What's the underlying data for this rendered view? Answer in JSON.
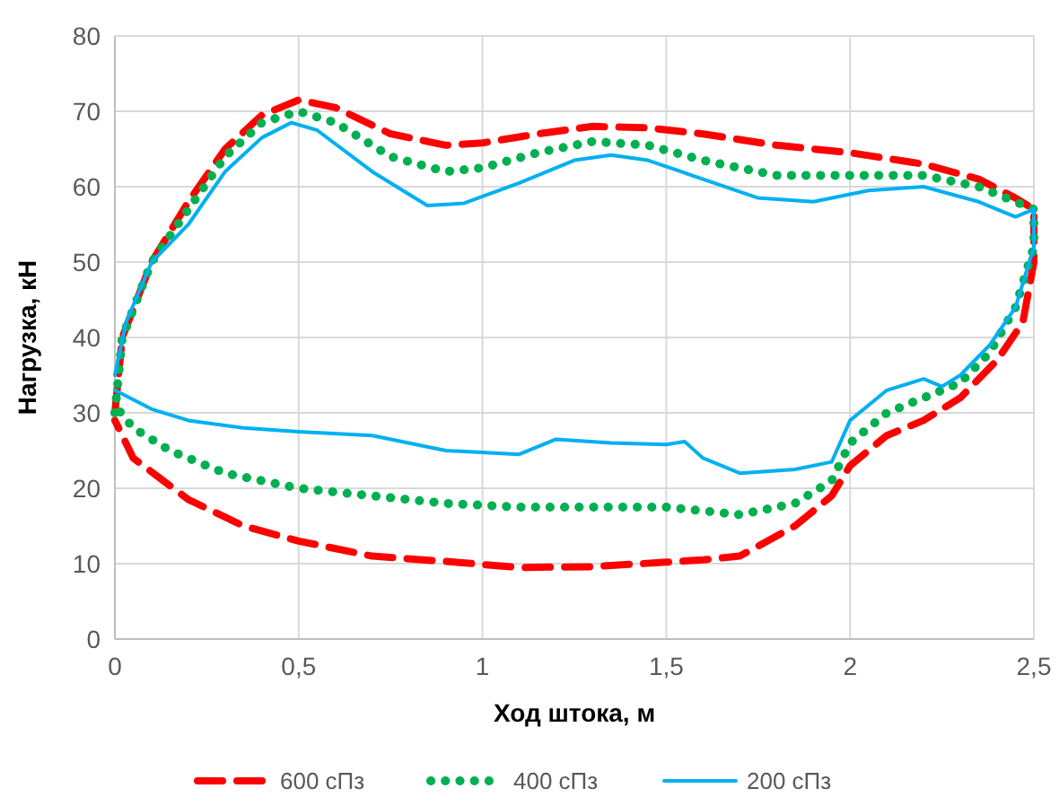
{
  "chart_data": {
    "type": "line",
    "xlabel": "Ход штока, м",
    "ylabel": "Нагрузка, кН",
    "xlim": [
      0,
      2.5
    ],
    "xticks": [
      0,
      {
        "value": 0.5,
        "label": "0,5"
      },
      1,
      {
        "value": 1.5,
        "label": "1,5"
      },
      2,
      {
        "value": 2.5,
        "label": "2,5"
      }
    ],
    "ylim": [
      0,
      80
    ],
    "yticks": [
      0,
      10,
      20,
      30,
      40,
      50,
      60,
      70,
      80
    ],
    "grid": true,
    "legend": "bottom",
    "marker": "none",
    "series": [
      {
        "name": "600 сПз",
        "color": "#ff0000",
        "line_style": "dashed",
        "x": [
          0,
          0.02,
          0.1,
          0.2,
          0.3,
          0.4,
          0.5,
          0.6,
          0.75,
          0.9,
          1.0,
          1.15,
          1.3,
          1.45,
          1.6,
          1.8,
          2.0,
          2.2,
          2.35,
          2.45,
          2.5,
          2.5,
          2.47,
          2.4,
          2.3,
          2.2,
          2.1,
          2.0,
          1.95,
          1.85,
          1.7,
          1.6,
          1.5,
          1.3,
          1.1,
          0.9,
          0.7,
          0.5,
          0.35,
          0.2,
          0.05,
          0
        ],
        "values": [
          30,
          40,
          50,
          58,
          65,
          69.5,
          71.5,
          70.5,
          67,
          65.5,
          65.8,
          67,
          68,
          67.8,
          67,
          65.5,
          64.5,
          63,
          61,
          58.5,
          57,
          50,
          42,
          37,
          32,
          29,
          27,
          23,
          19,
          15,
          11,
          10.5,
          10.2,
          9.6,
          9.5,
          10.3,
          11,
          13,
          15,
          18.5,
          24,
          29
        ]
      },
      {
        "name": "400 сПз",
        "color": "#00b050",
        "line_style": "dotted",
        "x": [
          0,
          0.02,
          0.1,
          0.2,
          0.3,
          0.4,
          0.5,
          0.6,
          0.75,
          0.9,
          1.0,
          1.15,
          1.3,
          1.45,
          1.6,
          1.8,
          2.0,
          2.2,
          2.35,
          2.45,
          2.5,
          2.5,
          2.45,
          2.38,
          2.3,
          2.2,
          2.1,
          2.0,
          1.95,
          1.85,
          1.7,
          1.5,
          1.3,
          1.1,
          0.9,
          0.7,
          0.5,
          0.3,
          0.15,
          0.05,
          0
        ],
        "values": [
          30,
          40,
          50,
          57,
          64,
          68.5,
          70,
          68.5,
          64,
          62,
          62.5,
          64.5,
          66,
          65.5,
          63.5,
          61.5,
          61.5,
          61.5,
          60,
          58,
          57,
          52,
          44,
          38,
          34,
          32,
          30,
          26,
          21,
          18,
          16.5,
          17.5,
          17.5,
          17.5,
          18,
          19,
          20,
          22,
          25,
          28,
          31
        ]
      },
      {
        "name": "200 сПз",
        "color": "#00b0f0",
        "line_style": "solid",
        "x": [
          0,
          0.03,
          0.1,
          0.2,
          0.3,
          0.4,
          0.48,
          0.55,
          0.7,
          0.85,
          0.95,
          1.1,
          1.25,
          1.35,
          1.45,
          1.6,
          1.75,
          1.9,
          2.05,
          2.2,
          2.35,
          2.45,
          2.5,
          2.5,
          2.45,
          2.38,
          2.3,
          2.25,
          2.2,
          2.1,
          2.0,
          1.95,
          1.85,
          1.7,
          1.6,
          1.55,
          1.5,
          1.35,
          1.2,
          1.1,
          0.9,
          0.7,
          0.5,
          0.35,
          0.2,
          0.1,
          0
        ],
        "values": [
          35,
          42,
          50,
          55,
          62,
          66.5,
          68.5,
          67.5,
          62,
          57.5,
          57.8,
          60.5,
          63.5,
          64.2,
          63.5,
          61,
          58.5,
          58,
          59.5,
          60,
          58,
          56,
          57,
          52,
          44,
          39,
          35,
          33.5,
          34.5,
          33,
          29,
          23.5,
          22.5,
          22,
          24,
          26.2,
          25.8,
          26,
          26.5,
          24.5,
          25,
          27,
          27.5,
          28,
          29,
          30.5,
          33
        ]
      }
    ]
  }
}
